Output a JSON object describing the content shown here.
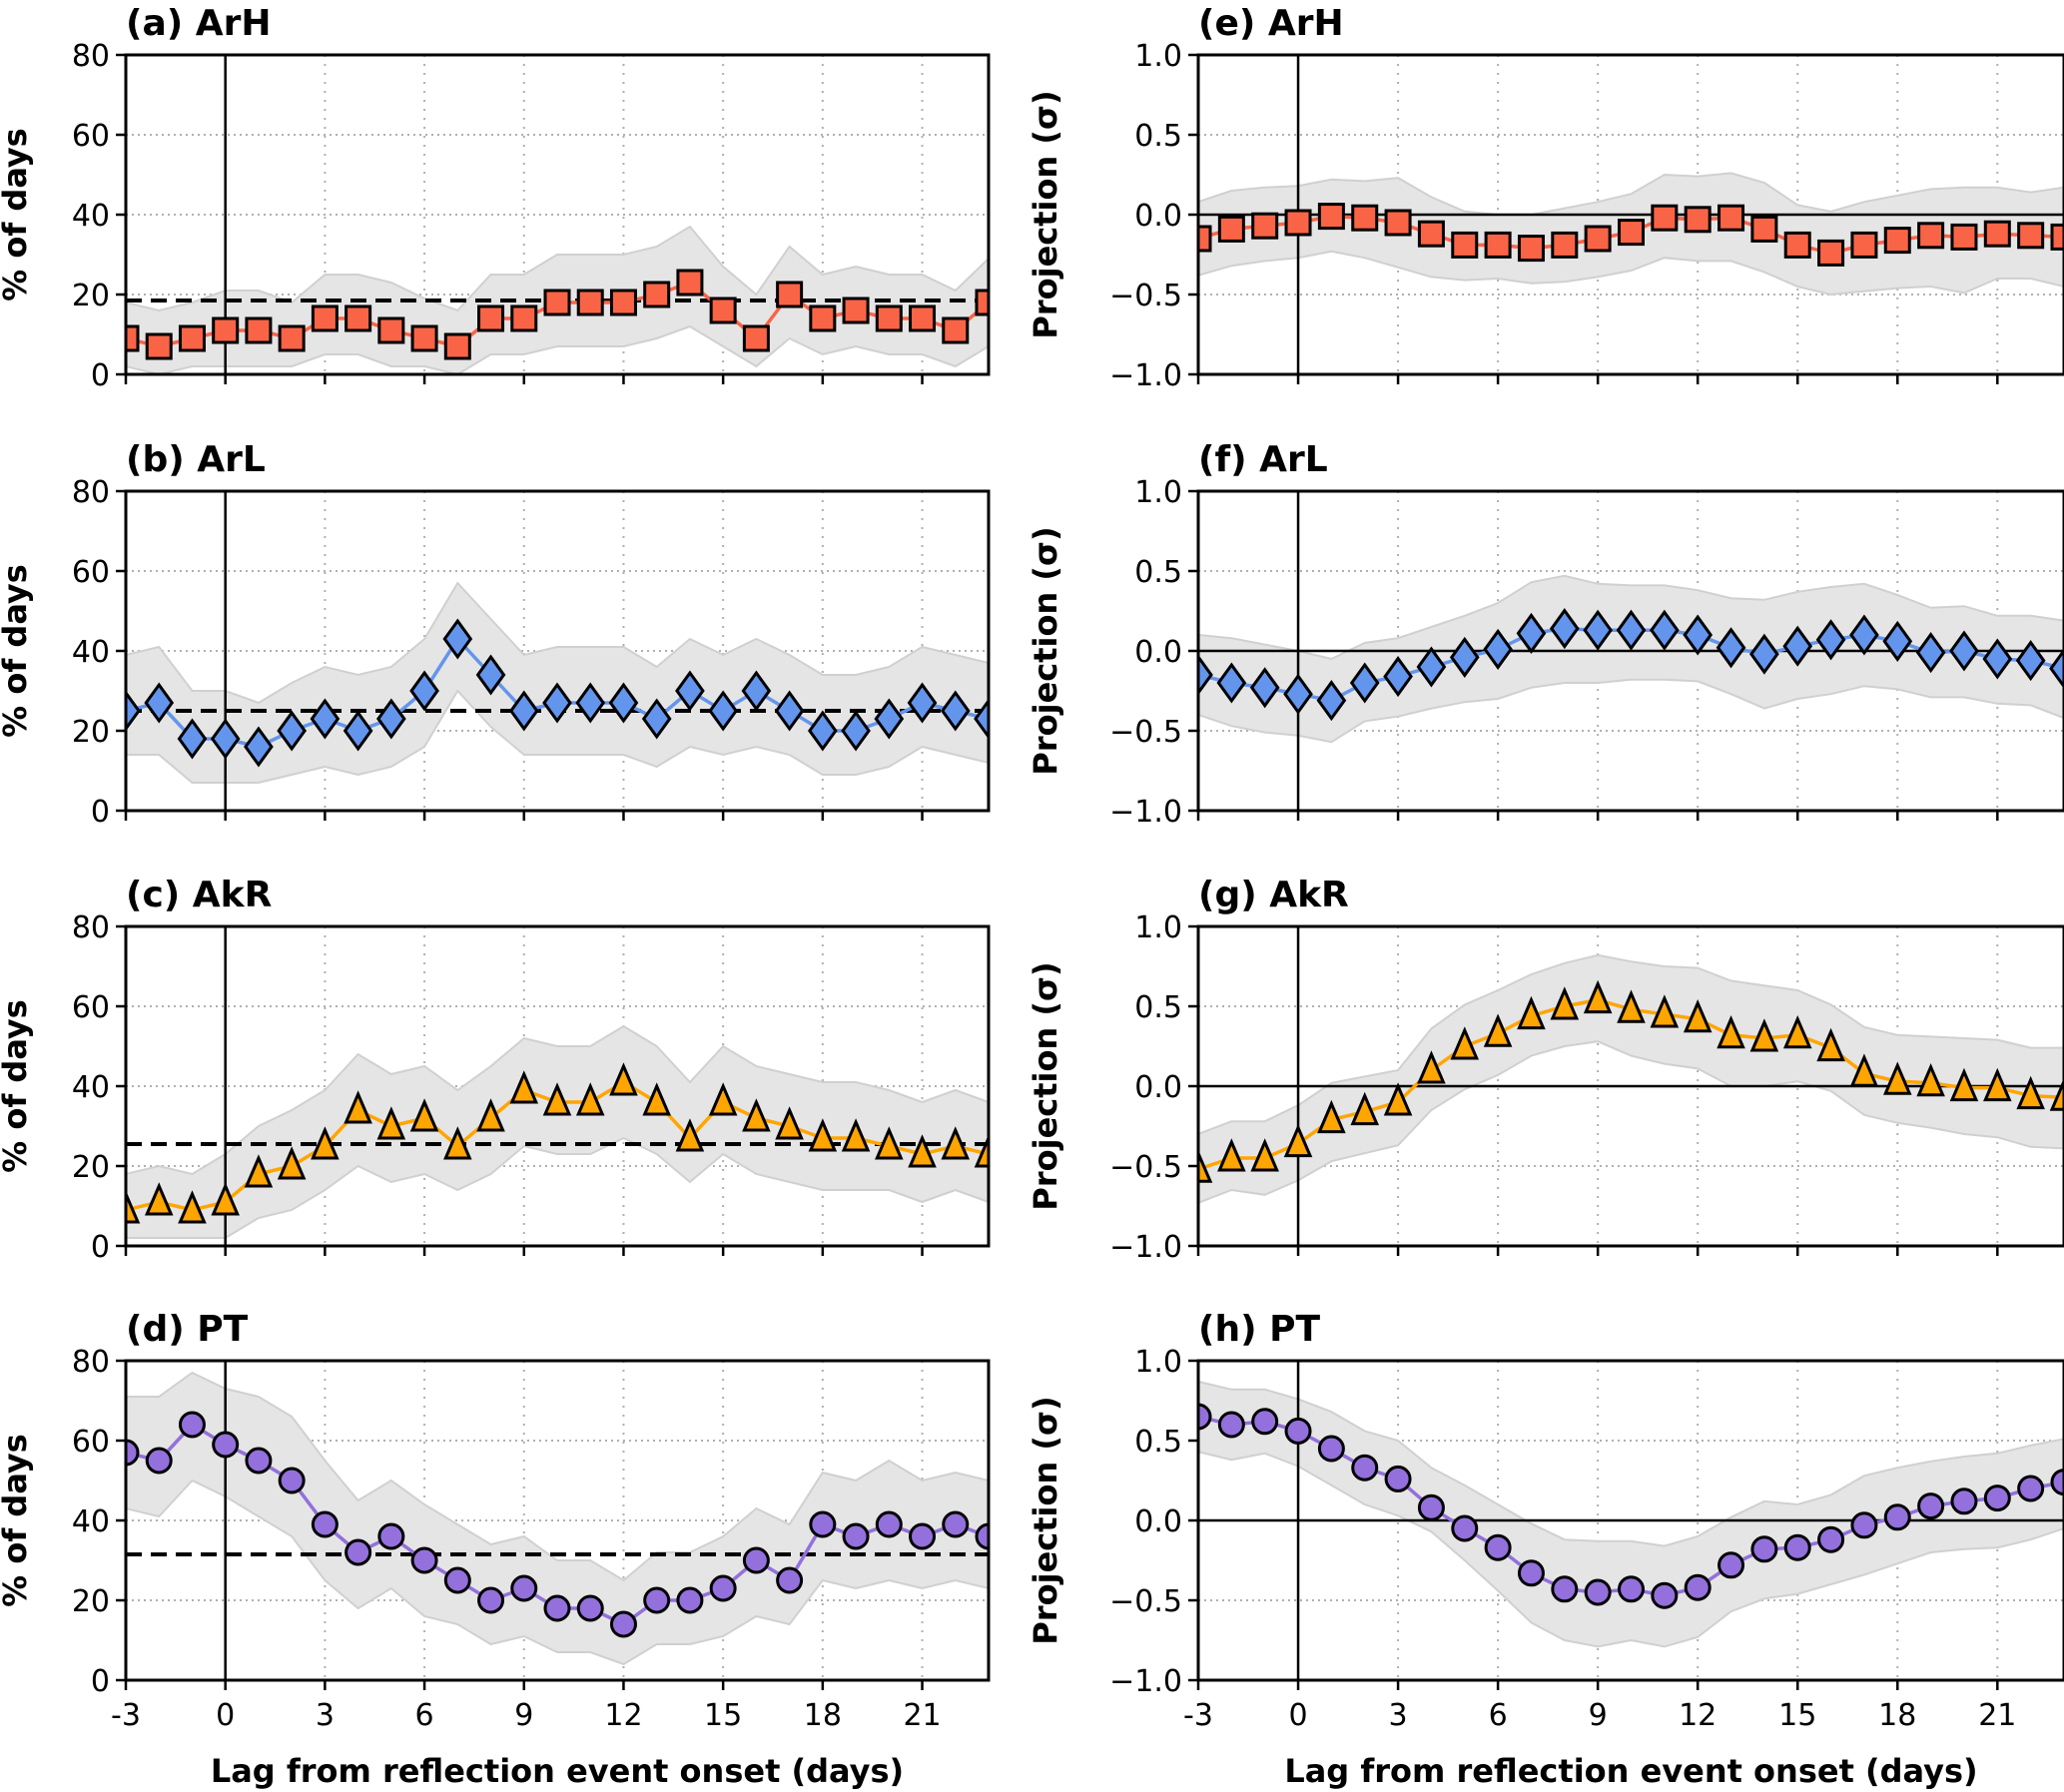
{
  "figure": {
    "xlabel": "Lag from reflection event onset (days)"
  },
  "chart_data": [
    {
      "type": "line",
      "panel": "a",
      "title": "(a) ArH",
      "ylabel": "% of days",
      "xlabel": "Lag from reflection event onset (days)",
      "xlim": [
        -3,
        23
      ],
      "ylim": [
        0,
        80
      ],
      "xticks": [
        -3,
        0,
        3,
        6,
        9,
        12,
        15,
        18,
        21
      ],
      "xtick_labels": [
        "-3",
        "0",
        "3",
        "6",
        "9",
        "12",
        "15",
        "18",
        "21"
      ],
      "yticks": [
        0,
        20,
        40,
        60,
        80
      ],
      "ytick_labels": [
        "0",
        "20",
        "40",
        "60",
        "80"
      ],
      "grid": true,
      "marker": "square",
      "color": "#fa6446",
      "reference_line": {
        "style": "dashed",
        "value": 18.5
      },
      "zero_line": false,
      "x": [
        -3,
        -2,
        -1,
        0,
        1,
        2,
        3,
        4,
        5,
        6,
        7,
        8,
        9,
        10,
        11,
        12,
        13,
        14,
        15,
        16,
        17,
        18,
        19,
        20,
        21,
        22,
        23
      ],
      "values": [
        9,
        7,
        9,
        11,
        11,
        9,
        14,
        14,
        11,
        9,
        7,
        14,
        14,
        18,
        18,
        18,
        20,
        23,
        16,
        9,
        20,
        14,
        16,
        14,
        14,
        11,
        18
      ],
      "band_upper": [
        18,
        16,
        18,
        21,
        21,
        18,
        25,
        25,
        23,
        19,
        16,
        25,
        25,
        30,
        30,
        30,
        32,
        37,
        27,
        20,
        32,
        25,
        27,
        25,
        25,
        21,
        29
      ],
      "band_lower": [
        2,
        0,
        2,
        2,
        2,
        2,
        5,
        5,
        2,
        2,
        0,
        5,
        5,
        7,
        7,
        7,
        9,
        12,
        7,
        2,
        9,
        5,
        7,
        5,
        5,
        2,
        7
      ]
    },
    {
      "type": "line",
      "panel": "b",
      "title": "(b) ArL",
      "ylabel": "% of days",
      "xlabel": "Lag from reflection event onset (days)",
      "xlim": [
        -3,
        23
      ],
      "ylim": [
        0,
        80
      ],
      "xticks": [
        -3,
        0,
        3,
        6,
        9,
        12,
        15,
        18,
        21
      ],
      "xtick_labels": [
        "-3",
        "0",
        "3",
        "6",
        "9",
        "12",
        "15",
        "18",
        "21"
      ],
      "yticks": [
        0,
        20,
        40,
        60,
        80
      ],
      "ytick_labels": [
        "0",
        "20",
        "40",
        "60",
        "80"
      ],
      "grid": true,
      "marker": "diamond",
      "color": "#6495ed",
      "reference_line": {
        "style": "dashed",
        "value": 25
      },
      "zero_line": false,
      "x": [
        -3,
        -2,
        -1,
        0,
        1,
        2,
        3,
        4,
        5,
        6,
        7,
        8,
        9,
        10,
        11,
        12,
        13,
        14,
        15,
        16,
        17,
        18,
        19,
        20,
        21,
        22,
        23
      ],
      "values": [
        25,
        27,
        18,
        18,
        16,
        20,
        23,
        20,
        23,
        30,
        43,
        34,
        25,
        27,
        27,
        27,
        23,
        30,
        25,
        30,
        25,
        20,
        20,
        23,
        27,
        25,
        23
      ],
      "band_upper": [
        39,
        41,
        30,
        30,
        27,
        32,
        36,
        34,
        36,
        43,
        57,
        48,
        39,
        41,
        41,
        41,
        36,
        43,
        39,
        43,
        39,
        34,
        34,
        36,
        41,
        39,
        37
      ],
      "band_lower": [
        14,
        14,
        7,
        7,
        7,
        9,
        11,
        9,
        11,
        16,
        30,
        21,
        14,
        14,
        14,
        14,
        11,
        16,
        14,
        16,
        14,
        9,
        9,
        11,
        16,
        14,
        12
      ]
    },
    {
      "type": "line",
      "panel": "c",
      "title": "(c) AkR",
      "ylabel": "% of days",
      "xlabel": "Lag from reflection event onset (days)",
      "xlim": [
        -3,
        23
      ],
      "ylim": [
        0,
        80
      ],
      "xticks": [
        -3,
        0,
        3,
        6,
        9,
        12,
        15,
        18,
        21
      ],
      "xtick_labels": [
        "-3",
        "0",
        "3",
        "6",
        "9",
        "12",
        "15",
        "18",
        "21"
      ],
      "yticks": [
        0,
        20,
        40,
        60,
        80
      ],
      "ytick_labels": [
        "0",
        "20",
        "40",
        "60",
        "80"
      ],
      "grid": true,
      "marker": "triangle",
      "color": "#ffa500",
      "reference_line": {
        "style": "dashed",
        "value": 25.5
      },
      "zero_line": false,
      "x": [
        -3,
        -2,
        -1,
        0,
        1,
        2,
        3,
        4,
        5,
        6,
        7,
        8,
        9,
        10,
        11,
        12,
        13,
        14,
        15,
        16,
        17,
        18,
        19,
        20,
        21,
        22,
        23
      ],
      "values": [
        9,
        11,
        9,
        11,
        18,
        20,
        25,
        34,
        30,
        32,
        25,
        32,
        39,
        36,
        36,
        41,
        36,
        27,
        36,
        32,
        30,
        27,
        27,
        25,
        23,
        25,
        23
      ],
      "band_upper": [
        18,
        20,
        18,
        23,
        30,
        34,
        39,
        48,
        43,
        45,
        39,
        45,
        52,
        50,
        50,
        55,
        50,
        41,
        50,
        45,
        43,
        41,
        41,
        39,
        36,
        39,
        36
      ],
      "band_lower": [
        2,
        2,
        2,
        2,
        7,
        9,
        14,
        20,
        16,
        18,
        14,
        18,
        25,
        23,
        23,
        27,
        23,
        16,
        23,
        18,
        16,
        14,
        14,
        14,
        11,
        14,
        11
      ]
    },
    {
      "type": "line",
      "panel": "d",
      "title": "(d) PT",
      "ylabel": "% of days",
      "xlabel": "Lag from reflection event onset (days)",
      "xlim": [
        -3,
        23
      ],
      "ylim": [
        0,
        80
      ],
      "xticks": [
        -3,
        0,
        3,
        6,
        9,
        12,
        15,
        18,
        21
      ],
      "xtick_labels": [
        "-3",
        "0",
        "3",
        "6",
        "9",
        "12",
        "15",
        "18",
        "21"
      ],
      "yticks": [
        0,
        20,
        40,
        60,
        80
      ],
      "ytick_labels": [
        "0",
        "20",
        "40",
        "60",
        "80"
      ],
      "grid": true,
      "marker": "circle",
      "color": "#9370db",
      "reference_line": {
        "style": "dashed",
        "value": 31.5
      },
      "zero_line": false,
      "x": [
        -3,
        -2,
        -1,
        0,
        1,
        2,
        3,
        4,
        5,
        6,
        7,
        8,
        9,
        10,
        11,
        12,
        13,
        14,
        15,
        16,
        17,
        18,
        19,
        20,
        21,
        22,
        23
      ],
      "values": [
        57,
        55,
        64,
        59,
        55,
        50,
        39,
        32,
        36,
        30,
        25,
        20,
        23,
        18,
        18,
        14,
        20,
        20,
        23,
        30,
        25,
        39,
        36,
        39,
        36,
        39,
        36
      ],
      "band_upper": [
        71,
        71,
        77,
        73,
        71,
        66,
        55,
        45,
        50,
        44,
        39,
        34,
        36,
        30,
        30,
        25,
        32,
        32,
        36,
        43,
        39,
        52,
        50,
        55,
        50,
        52,
        50
      ],
      "band_lower": [
        43,
        41,
        50,
        46,
        41,
        36,
        25,
        18,
        23,
        16,
        14,
        9,
        11,
        7,
        7,
        4,
        9,
        9,
        11,
        16,
        14,
        25,
        23,
        25,
        23,
        25,
        23
      ]
    },
    {
      "type": "line",
      "panel": "e",
      "title": "(e) ArH",
      "ylabel": "Projection (σ)",
      "xlabel": "Lag from reflection event onset (days)",
      "xlim": [
        -3,
        23
      ],
      "ylim": [
        -1.0,
        1.0
      ],
      "xticks": [
        -3,
        0,
        3,
        6,
        9,
        12,
        15,
        18,
        21
      ],
      "xtick_labels": [
        "-3",
        "0",
        "3",
        "6",
        "9",
        "12",
        "15",
        "18",
        "21"
      ],
      "yticks": [
        -1.0,
        -0.5,
        0.0,
        0.5,
        1.0
      ],
      "ytick_labels": [
        "−1.0",
        "−0.5",
        "0.0",
        "0.5",
        "1.0"
      ],
      "grid": true,
      "marker": "square",
      "color": "#fa6446",
      "reference_line": null,
      "zero_line": true,
      "x": [
        -3,
        -2,
        -1,
        0,
        1,
        2,
        3,
        4,
        5,
        6,
        7,
        8,
        9,
        10,
        11,
        12,
        13,
        14,
        15,
        16,
        17,
        18,
        19,
        20,
        21,
        22,
        23
      ],
      "values": [
        -0.15,
        -0.09,
        -0.07,
        -0.05,
        -0.01,
        -0.02,
        -0.05,
        -0.12,
        -0.19,
        -0.19,
        -0.21,
        -0.19,
        -0.15,
        -0.11,
        -0.02,
        -0.03,
        -0.02,
        -0.09,
        -0.19,
        -0.24,
        -0.19,
        -0.16,
        -0.13,
        -0.14,
        -0.12,
        -0.13,
        -0.14
      ],
      "band_upper": [
        0.08,
        0.15,
        0.17,
        0.18,
        0.22,
        0.21,
        0.23,
        0.11,
        0.02,
        0.0,
        0.0,
        0.04,
        0.08,
        0.13,
        0.25,
        0.24,
        0.26,
        0.2,
        0.06,
        0.02,
        0.08,
        0.12,
        0.16,
        0.17,
        0.17,
        0.14,
        0.17
      ],
      "band_lower": [
        -0.38,
        -0.32,
        -0.29,
        -0.27,
        -0.23,
        -0.27,
        -0.33,
        -0.39,
        -0.41,
        -0.4,
        -0.43,
        -0.42,
        -0.39,
        -0.35,
        -0.27,
        -0.29,
        -0.29,
        -0.36,
        -0.45,
        -0.5,
        -0.48,
        -0.46,
        -0.45,
        -0.49,
        -0.4,
        -0.4,
        -0.45
      ]
    },
    {
      "type": "line",
      "panel": "f",
      "title": "(f) ArL",
      "ylabel": "Projection (σ)",
      "xlabel": "Lag from reflection event onset (days)",
      "xlim": [
        -3,
        23
      ],
      "ylim": [
        -1.0,
        1.0
      ],
      "xticks": [
        -3,
        0,
        3,
        6,
        9,
        12,
        15,
        18,
        21
      ],
      "xtick_labels": [
        "-3",
        "0",
        "3",
        "6",
        "9",
        "12",
        "15",
        "18",
        "21"
      ],
      "yticks": [
        -1.0,
        -0.5,
        0.0,
        0.5,
        1.0
      ],
      "ytick_labels": [
        "−1.0",
        "−0.5",
        "0.0",
        "0.5",
        "1.0"
      ],
      "grid": true,
      "marker": "diamond",
      "color": "#6495ed",
      "reference_line": null,
      "zero_line": true,
      "x": [
        -3,
        -2,
        -1,
        0,
        1,
        2,
        3,
        4,
        5,
        6,
        7,
        8,
        9,
        10,
        11,
        12,
        13,
        14,
        15,
        16,
        17,
        18,
        19,
        20,
        21,
        22,
        23
      ],
      "values": [
        -0.15,
        -0.2,
        -0.23,
        -0.27,
        -0.31,
        -0.2,
        -0.16,
        -0.1,
        -0.04,
        0.01,
        0.11,
        0.14,
        0.13,
        0.13,
        0.13,
        0.1,
        0.02,
        -0.02,
        0.03,
        0.07,
        0.1,
        0.06,
        -0.01,
        0.0,
        -0.05,
        -0.06,
        -0.11
      ],
      "band_upper": [
        0.1,
        0.08,
        0.04,
        0.0,
        -0.05,
        0.05,
        0.08,
        0.15,
        0.22,
        0.3,
        0.43,
        0.47,
        0.42,
        0.41,
        0.41,
        0.38,
        0.33,
        0.32,
        0.37,
        0.4,
        0.42,
        0.35,
        0.27,
        0.28,
        0.22,
        0.22,
        0.19
      ],
      "band_lower": [
        -0.4,
        -0.47,
        -0.51,
        -0.53,
        -0.57,
        -0.44,
        -0.41,
        -0.36,
        -0.32,
        -0.3,
        -0.23,
        -0.2,
        -0.2,
        -0.18,
        -0.18,
        -0.19,
        -0.27,
        -0.36,
        -0.3,
        -0.27,
        -0.22,
        -0.24,
        -0.29,
        -0.29,
        -0.33,
        -0.34,
        -0.42
      ]
    },
    {
      "type": "line",
      "panel": "g",
      "title": "(g) AkR",
      "ylabel": "Projection (σ)",
      "xlabel": "Lag from reflection event onset (days)",
      "xlim": [
        -3,
        23
      ],
      "ylim": [
        -1.0,
        1.0
      ],
      "xticks": [
        -3,
        0,
        3,
        6,
        9,
        12,
        15,
        18,
        21
      ],
      "xtick_labels": [
        "-3",
        "0",
        "3",
        "6",
        "9",
        "12",
        "15",
        "18",
        "21"
      ],
      "yticks": [
        -1.0,
        -0.5,
        0.0,
        0.5,
        1.0
      ],
      "ytick_labels": [
        "−1.0",
        "−0.5",
        "0.0",
        "0.5",
        "1.0"
      ],
      "grid": true,
      "marker": "triangle",
      "color": "#ffa500",
      "reference_line": null,
      "zero_line": true,
      "x": [
        -3,
        -2,
        -1,
        0,
        1,
        2,
        3,
        4,
        5,
        6,
        7,
        8,
        9,
        10,
        11,
        12,
        13,
        14,
        15,
        16,
        17,
        18,
        19,
        20,
        21,
        22,
        23
      ],
      "values": [
        -0.52,
        -0.45,
        -0.45,
        -0.36,
        -0.21,
        -0.16,
        -0.1,
        0.1,
        0.25,
        0.33,
        0.44,
        0.5,
        0.54,
        0.48,
        0.45,
        0.42,
        0.32,
        0.3,
        0.32,
        0.24,
        0.08,
        0.03,
        0.02,
        -0.01,
        -0.01,
        -0.06,
        -0.07
      ],
      "band_upper": [
        -0.3,
        -0.22,
        -0.22,
        -0.12,
        0.02,
        0.06,
        0.1,
        0.36,
        0.51,
        0.6,
        0.7,
        0.77,
        0.82,
        0.78,
        0.75,
        0.74,
        0.66,
        0.63,
        0.6,
        0.51,
        0.37,
        0.32,
        0.31,
        0.3,
        0.29,
        0.24,
        0.24
      ],
      "band_lower": [
        -0.73,
        -0.65,
        -0.68,
        -0.59,
        -0.47,
        -0.42,
        -0.37,
        -0.15,
        -0.02,
        0.07,
        0.19,
        0.25,
        0.28,
        0.19,
        0.14,
        0.11,
        0.0,
        0.0,
        0.03,
        -0.03,
        -0.18,
        -0.23,
        -0.26,
        -0.3,
        -0.32,
        -0.38,
        -0.39
      ]
    },
    {
      "type": "line",
      "panel": "h",
      "title": "(h) PT",
      "ylabel": "Projection (σ)",
      "xlabel": "Lag from reflection event onset (days)",
      "xlim": [
        -3,
        23
      ],
      "ylim": [
        -1.0,
        1.0
      ],
      "xticks": [
        -3,
        0,
        3,
        6,
        9,
        12,
        15,
        18,
        21
      ],
      "xtick_labels": [
        "-3",
        "0",
        "3",
        "6",
        "9",
        "12",
        "15",
        "18",
        "21"
      ],
      "yticks": [
        -1.0,
        -0.5,
        0.0,
        0.5,
        1.0
      ],
      "ytick_labels": [
        "−1.0",
        "−0.5",
        "0.0",
        "0.5",
        "1.0"
      ],
      "grid": true,
      "marker": "circle",
      "color": "#9370db",
      "reference_line": null,
      "zero_line": true,
      "x": [
        -3,
        -2,
        -1,
        0,
        1,
        2,
        3,
        4,
        5,
        6,
        7,
        8,
        9,
        10,
        11,
        12,
        13,
        14,
        15,
        16,
        17,
        18,
        19,
        20,
        21,
        22,
        23
      ],
      "values": [
        0.65,
        0.6,
        0.62,
        0.56,
        0.45,
        0.33,
        0.26,
        0.08,
        -0.05,
        -0.17,
        -0.33,
        -0.43,
        -0.45,
        -0.43,
        -0.47,
        -0.42,
        -0.28,
        -0.18,
        -0.17,
        -0.12,
        -0.03,
        0.02,
        0.09,
        0.12,
        0.14,
        0.2,
        0.24
      ],
      "band_upper": [
        0.87,
        0.82,
        0.82,
        0.76,
        0.68,
        0.56,
        0.5,
        0.33,
        0.22,
        0.1,
        -0.02,
        -0.12,
        -0.13,
        -0.13,
        -0.16,
        -0.1,
        0.02,
        0.12,
        0.1,
        0.16,
        0.28,
        0.33,
        0.37,
        0.4,
        0.42,
        0.47,
        0.51
      ],
      "band_lower": [
        0.43,
        0.38,
        0.42,
        0.34,
        0.22,
        0.1,
        0.03,
        -0.07,
        -0.25,
        -0.44,
        -0.64,
        -0.75,
        -0.79,
        -0.75,
        -0.79,
        -0.73,
        -0.57,
        -0.49,
        -0.46,
        -0.4,
        -0.34,
        -0.27,
        -0.2,
        -0.18,
        -0.17,
        -0.12,
        -0.05
      ]
    }
  ]
}
